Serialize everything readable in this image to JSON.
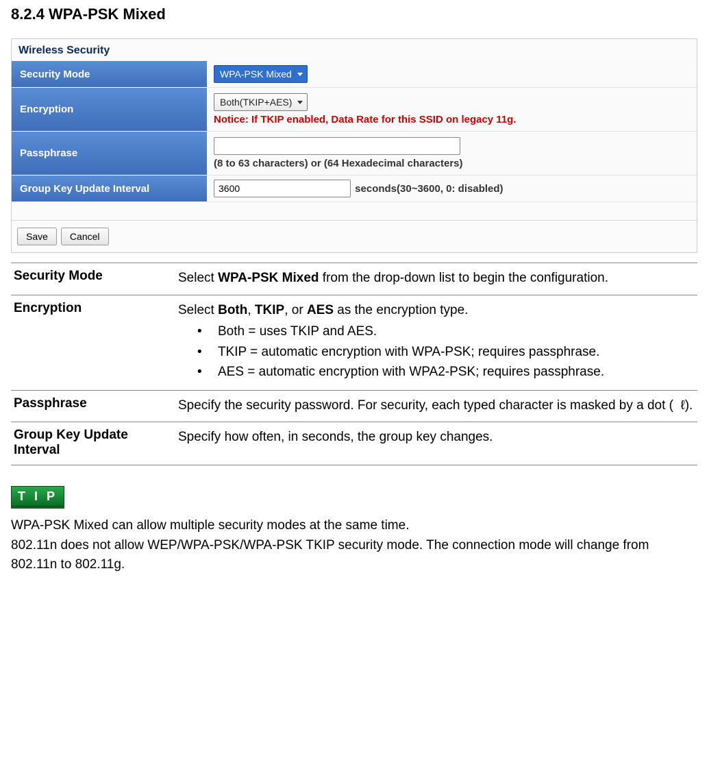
{
  "heading": "8.2.4 WPA-PSK Mixed",
  "ui": {
    "panel_title": "Wireless Security",
    "rows": {
      "security_mode": {
        "label": "Security Mode",
        "value": "WPA-PSK Mixed"
      },
      "encryption": {
        "label": "Encryption",
        "value": "Both(TKIP+AES)",
        "notice": "Notice: If TKIP enabled, Data Rate for this SSID on legacy 11g."
      },
      "passphrase": {
        "label": "Passphrase",
        "value": "",
        "hint": "(8 to 63 characters) or (64 Hexadecimal characters)"
      },
      "group_key": {
        "label": "Group Key Update Interval",
        "value": "3600",
        "suffix": "seconds(30~3600, 0: disabled)"
      }
    },
    "buttons": {
      "save": "Save",
      "cancel": "Cancel"
    }
  },
  "desc": {
    "security_mode": {
      "label": "Security Mode",
      "pre": "Select ",
      "bold": "WPA-PSK Mixed",
      "post": " from the drop-down list to begin the configuration."
    },
    "encryption": {
      "label": "Encryption",
      "pre": "Select ",
      "b1": "Both",
      "c1": ", ",
      "b2": "TKIP",
      "c2": ", or ",
      "b3": "AES",
      "post": " as the encryption type.",
      "bullets": [
        "Both = uses TKIP and AES.",
        "TKIP = automatic encryption with WPA-PSK; requires passphrase.",
        "AES = automatic encryption with WPA2-PSK; requires passphrase."
      ]
    },
    "passphrase": {
      "label": "Passphrase",
      "text": "Specify the security password. For security, each typed character is masked by a dot (  ℓ)."
    },
    "group_key": {
      "label": "Group Key Update Interval",
      "text": "Specify how often, in seconds, the group key changes."
    }
  },
  "tip": {
    "badge": "T I P",
    "line1": "WPA-PSK Mixed can allow multiple security modes at the same time.",
    "line2": "802.11n does not allow WEP/WPA-PSK/WPA-PSK TKIP security mode. The connection mode will change from 802.11n to 802.11g."
  }
}
